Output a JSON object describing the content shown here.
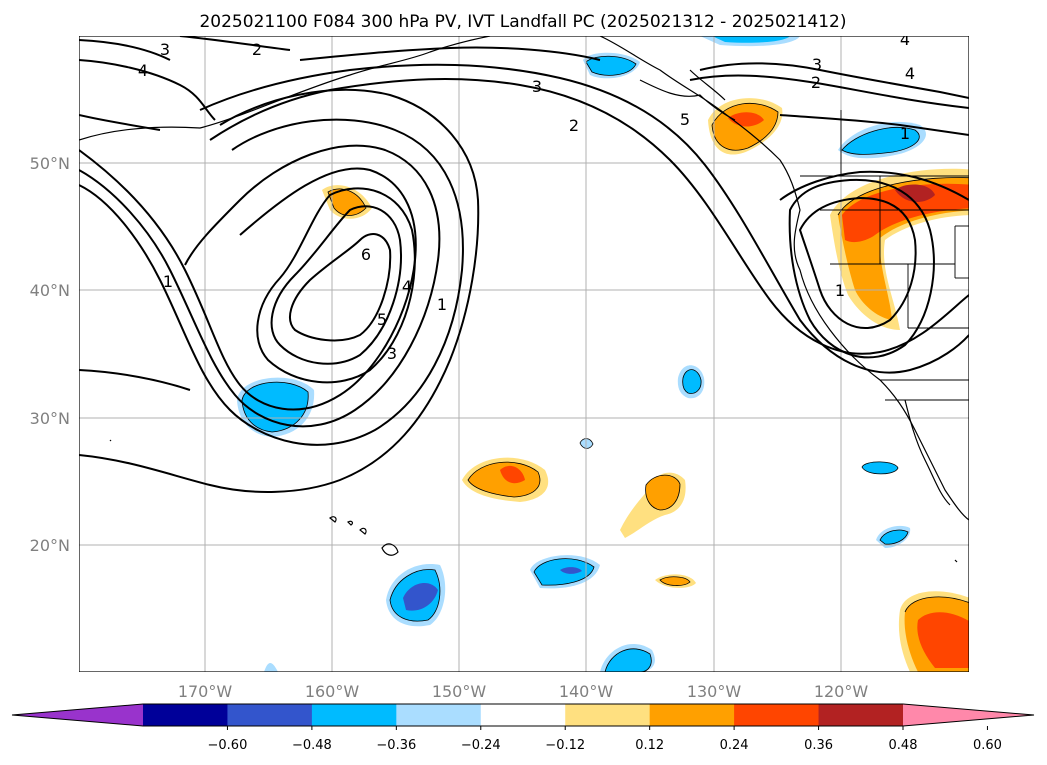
{
  "title": "2025021100 F084 300 hPa PV, IVT Landfall PC (2025021312 - 2025021412)",
  "lat_labels": [
    "20°N",
    "30°N",
    "40°N",
    "50°N"
  ],
  "lon_labels": [
    "170°W",
    "160°W",
    "150°W",
    "140°W",
    "130°W",
    "120°W"
  ],
  "colorbar": {
    "ticks": [
      "−0.60",
      "−0.48",
      "−0.36",
      "−0.24",
      "−0.12",
      "0.12",
      "0.24",
      "0.36",
      "0.48",
      "0.60"
    ],
    "colors": [
      "#9933cc",
      "#000099",
      "#3355cc",
      "#00bbff",
      "#aaddff",
      "#ffffff",
      "#ffe080",
      "#ffa000",
      "#ff4500",
      "#b22222",
      "#ff88aa"
    ]
  },
  "contour_labels": [
    "3",
    "2",
    "4",
    "3",
    "2",
    "3",
    "4",
    "2",
    "4",
    "1",
    "1",
    "6",
    "5",
    "4",
    "3",
    "1",
    "5",
    "1"
  ],
  "shading_colors": {
    "light_blue": "#aaddff",
    "blue": "#00bbff",
    "royal_blue": "#3355cc",
    "light_yellow": "#ffe080",
    "orange": "#ffa000",
    "red_orange": "#ff4500",
    "dark_red": "#b22222"
  }
}
